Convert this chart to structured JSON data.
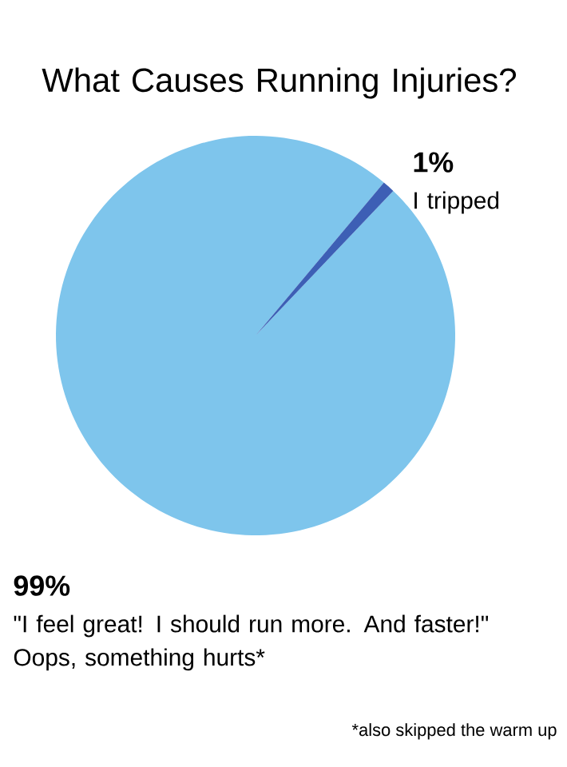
{
  "chart_data": {
    "type": "pie",
    "title": "What Causes Running Injuries?",
    "categories": [
      "\"I feel great! I should run more. And faster!\" Oops, something hurts*",
      "I tripped"
    ],
    "values": [
      99,
      1
    ],
    "value_labels": [
      "99%",
      "1%"
    ],
    "colors": [
      "#7ec5ec",
      "#3d5fb5"
    ],
    "annotations": [
      "*also skipped the warm up"
    ]
  }
}
